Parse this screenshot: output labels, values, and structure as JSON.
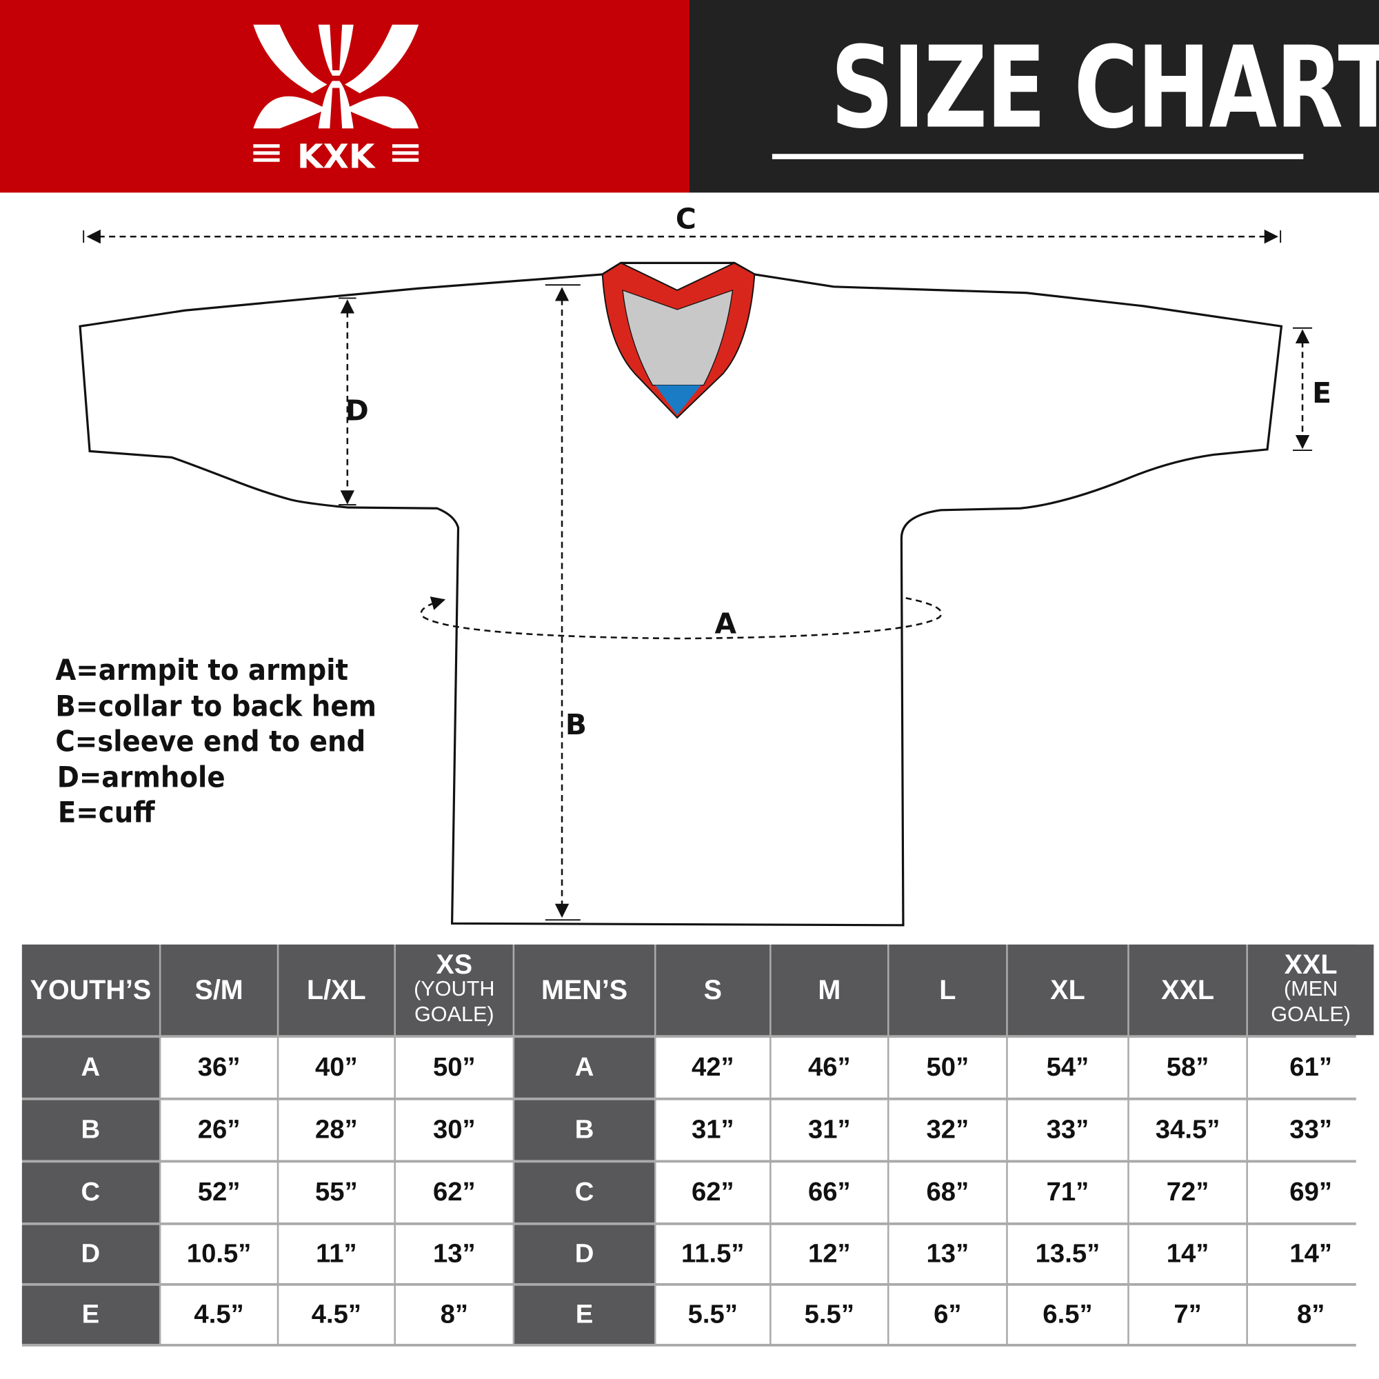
{
  "brand": {
    "logo_text": "KXK",
    "red": "#c40006",
    "dark": "#222222"
  },
  "header": {
    "title": "SIZE CHART"
  },
  "diagram": {
    "labels": {
      "a": "A",
      "b": "B",
      "c": "C",
      "d": "D",
      "e": "E"
    },
    "collar_colors": {
      "trim": "#d9261c",
      "inner": "#c8c8c8",
      "accent": "#1a7cc4"
    }
  },
  "legend": [
    "A=armpit to armpit",
    "B=collar to back hem",
    "C=sleeve end to end",
    "D=armhole",
    "E=cuff"
  ],
  "table": {
    "headers": [
      {
        "main": "YOUTH’S",
        "sub": ""
      },
      {
        "main": "S/M",
        "sub": ""
      },
      {
        "main": "L/XL",
        "sub": ""
      },
      {
        "main": "XS",
        "sub": "(YOUTH GOALE)"
      },
      {
        "main": "MEN’S",
        "sub": ""
      },
      {
        "main": "S",
        "sub": ""
      },
      {
        "main": "M",
        "sub": ""
      },
      {
        "main": "L",
        "sub": ""
      },
      {
        "main": "XL",
        "sub": ""
      },
      {
        "main": "XXL",
        "sub": ""
      },
      {
        "main": "XXL",
        "sub": "(MEN GOALE)"
      }
    ],
    "rows": [
      {
        "youth_label": "A",
        "youth": [
          "36”",
          "40”",
          "50”"
        ],
        "men_label": "A",
        "men": [
          "42”",
          "46”",
          "50”",
          "54”",
          "58”",
          "61”"
        ]
      },
      {
        "youth_label": "B",
        "youth": [
          "26”",
          "28”",
          "30”"
        ],
        "men_label": "B",
        "men": [
          "31”",
          "31”",
          "32”",
          "33”",
          "34.5”",
          "33”"
        ]
      },
      {
        "youth_label": "C",
        "youth": [
          "52”",
          "55”",
          "62”"
        ],
        "men_label": "C",
        "men": [
          "62”",
          "66”",
          "68”",
          "71”",
          "72”",
          "69”"
        ]
      },
      {
        "youth_label": "D",
        "youth": [
          "10.5”",
          "11”",
          "13”"
        ],
        "men_label": "D",
        "men": [
          "11.5”",
          "12”",
          "13”",
          "13.5”",
          "14”",
          "14”"
        ]
      },
      {
        "youth_label": "E",
        "youth": [
          "4.5”",
          "4.5”",
          "8”"
        ],
        "men_label": "E",
        "men": [
          "5.5”",
          "5.5”",
          "6”",
          "6.5”",
          "7”",
          "8”"
        ]
      }
    ]
  }
}
